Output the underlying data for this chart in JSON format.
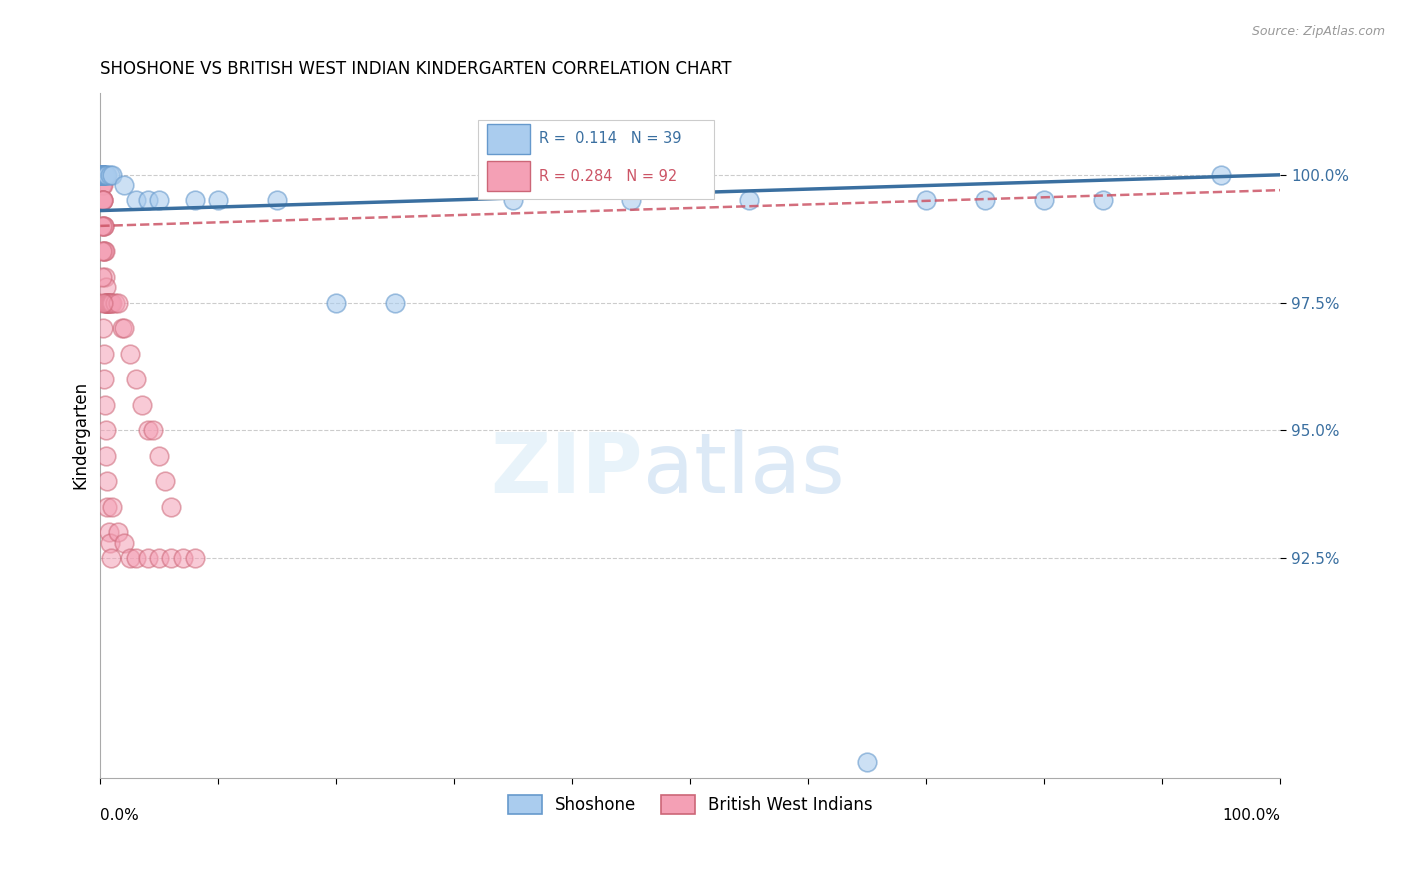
{
  "title": "SHOSHONE VS BRITISH WEST INDIAN KINDERGARTEN CORRELATION CHART",
  "source": "Source: ZipAtlas.com",
  "ylabel": "Kindergarten",
  "legend_entries": [
    "Shoshone",
    "British West Indians"
  ],
  "shoshone_R": 0.114,
  "shoshone_N": 39,
  "bwi_R": 0.284,
  "bwi_N": 92,
  "shoshone_color": "#aaccee",
  "bwi_color": "#f4a0b5",
  "shoshone_edge_color": "#6699cc",
  "bwi_edge_color": "#cc6677",
  "shoshone_line_color": "#3a6fa0",
  "bwi_line_color": "#cc5566",
  "ytick_labels": [
    "92.5%",
    "95.0%",
    "97.5%",
    "100.0%"
  ],
  "ytick_values": [
    92.5,
    95.0,
    97.5,
    100.0
  ],
  "xlim": [
    0.0,
    100.0
  ],
  "ylim": [
    88.2,
    101.6
  ],
  "shoshone_x": [
    0.05,
    0.08,
    0.1,
    0.11,
    0.12,
    0.13,
    0.14,
    0.15,
    0.15,
    0.16,
    0.17,
    0.18,
    0.2,
    0.25,
    0.3,
    0.35,
    0.4,
    0.5,
    0.6,
    0.8,
    1.0,
    2.0,
    3.0,
    4.0,
    5.0,
    8.0,
    10.0,
    15.0,
    20.0,
    25.0,
    35.0,
    45.0,
    55.0,
    65.0,
    70.0,
    75.0,
    80.0,
    85.0,
    95.0
  ],
  "shoshone_y": [
    100.0,
    100.0,
    100.0,
    100.0,
    100.0,
    100.0,
    100.0,
    100.0,
    100.0,
    100.0,
    100.0,
    100.0,
    100.0,
    100.0,
    100.0,
    100.0,
    100.0,
    100.0,
    100.0,
    100.0,
    100.0,
    99.8,
    99.5,
    99.5,
    99.5,
    99.5,
    99.5,
    99.5,
    97.5,
    97.5,
    99.5,
    99.5,
    99.5,
    88.5,
    99.5,
    99.5,
    99.5,
    99.5,
    100.0
  ],
  "bwi_x": [
    0.02,
    0.03,
    0.04,
    0.04,
    0.05,
    0.05,
    0.06,
    0.06,
    0.07,
    0.07,
    0.08,
    0.08,
    0.09,
    0.09,
    0.1,
    0.1,
    0.11,
    0.11,
    0.12,
    0.12,
    0.13,
    0.13,
    0.14,
    0.14,
    0.15,
    0.15,
    0.16,
    0.16,
    0.17,
    0.17,
    0.18,
    0.18,
    0.19,
    0.2,
    0.21,
    0.22,
    0.23,
    0.25,
    0.27,
    0.3,
    0.32,
    0.35,
    0.38,
    0.4,
    0.42,
    0.45,
    0.48,
    0.5,
    0.55,
    0.6,
    0.65,
    0.7,
    0.8,
    0.9,
    1.0,
    1.2,
    1.5,
    1.8,
    2.0,
    2.5,
    3.0,
    3.5,
    4.0,
    4.5,
    5.0,
    5.5,
    6.0,
    0.1,
    0.12,
    0.15,
    0.2,
    0.25,
    0.3,
    0.35,
    0.4,
    0.45,
    0.5,
    0.55,
    0.6,
    0.7,
    0.8,
    0.9,
    1.0,
    1.5,
    2.0,
    2.5,
    3.0,
    4.0,
    5.0,
    6.0,
    7.0,
    8.0
  ],
  "bwi_y": [
    100.0,
    100.0,
    100.0,
    100.0,
    100.0,
    100.0,
    100.0,
    100.0,
    100.0,
    100.0,
    100.0,
    100.0,
    100.0,
    100.0,
    100.0,
    100.0,
    100.0,
    100.0,
    100.0,
    100.0,
    100.0,
    100.0,
    100.0,
    100.0,
    100.0,
    99.8,
    99.5,
    100.0,
    99.8,
    99.5,
    100.0,
    99.5,
    99.8,
    99.5,
    100.0,
    99.5,
    99.0,
    99.5,
    98.5,
    99.0,
    98.5,
    99.0,
    98.5,
    98.0,
    97.5,
    97.8,
    97.5,
    97.5,
    97.5,
    97.5,
    97.5,
    97.5,
    97.5,
    97.5,
    97.5,
    97.5,
    97.5,
    97.0,
    97.0,
    96.5,
    96.0,
    95.5,
    95.0,
    95.0,
    94.5,
    94.0,
    93.5,
    99.0,
    98.5,
    98.0,
    97.5,
    97.0,
    96.5,
    96.0,
    95.5,
    95.0,
    94.5,
    94.0,
    93.5,
    93.0,
    92.8,
    92.5,
    93.5,
    93.0,
    92.8,
    92.5,
    92.5,
    92.5,
    92.5,
    92.5,
    92.5,
    92.5
  ]
}
